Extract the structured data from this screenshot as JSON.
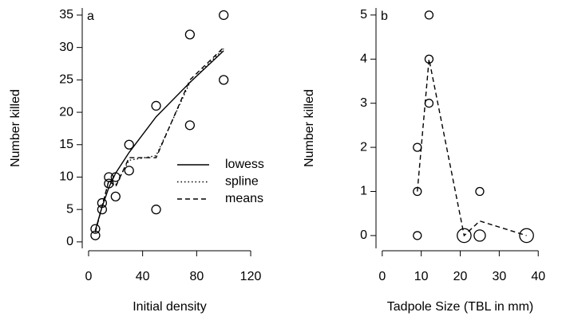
{
  "chart_data": [
    {
      "type": "scatter",
      "panel_label": "a",
      "x_label": "Initial density",
      "y_label": "Number killed",
      "xlim": [
        -4.7,
        125.3
      ],
      "ylim": [
        -1,
        36.1
      ],
      "xticks": [
        0,
        40,
        80,
        120
      ],
      "yticks": [
        0,
        5,
        10,
        15,
        20,
        25,
        30,
        35
      ],
      "legend": "center right",
      "color": "#000000",
      "series": [
        {
          "kind": "points",
          "x": [
            5,
            5,
            10,
            10,
            15,
            15,
            20,
            20,
            30,
            30,
            50,
            50,
            75,
            75,
            100,
            100
          ],
          "values": [
            1,
            2,
            5,
            6,
            10,
            9,
            7,
            10,
            11,
            15,
            5,
            21,
            32,
            18,
            25,
            35
          ]
        },
        {
          "kind": "line",
          "name": "lowess",
          "dash": "solid",
          "x": [
            5,
            10,
            15,
            20,
            30,
            50,
            75,
            100
          ],
          "values": [
            1.8,
            5.4,
            8.4,
            10.6,
            13.8,
            19.3,
            24.6,
            29.5
          ]
        },
        {
          "kind": "line",
          "name": "spline",
          "dash": "dotted",
          "x": [
            5,
            10,
            15,
            20,
            30,
            50,
            75,
            100
          ],
          "values": [
            1.5,
            5.5,
            9.4,
            8.8,
            12.6,
            13.3,
            24.6,
            29.8
          ]
        },
        {
          "kind": "line",
          "name": "means",
          "dash": "dashed",
          "x": [
            5,
            10,
            15,
            20,
            30,
            50,
            75,
            100
          ],
          "values": [
            1.5,
            5.5,
            9.5,
            8.5,
            13,
            13,
            25,
            30
          ]
        }
      ]
    },
    {
      "type": "scatter",
      "panel_label": "b",
      "x_label": "Tadpole Size (TBL in mm)",
      "y_label": "Number killed",
      "xlim": [
        -1.6,
        42
      ],
      "ylim": [
        -0.29,
        5.16
      ],
      "xticks": [
        0,
        10,
        20,
        30,
        40
      ],
      "yticks": [
        0,
        1,
        2,
        3,
        4,
        5
      ],
      "color": "#000000",
      "series": [
        {
          "kind": "points",
          "x": [
            9,
            9,
            9,
            12,
            12,
            12,
            21,
            25,
            25,
            37
          ],
          "values": [
            0,
            1,
            2,
            3,
            4,
            5,
            0,
            0,
            1,
            0
          ],
          "sizes": [
            1,
            1,
            1,
            1,
            1,
            1,
            3,
            2,
            1,
            3
          ]
        },
        {
          "kind": "line",
          "dash": "dashed",
          "x": [
            9,
            12,
            21,
            25,
            37
          ],
          "values": [
            1,
            4,
            0,
            0.33,
            0
          ]
        }
      ]
    }
  ]
}
